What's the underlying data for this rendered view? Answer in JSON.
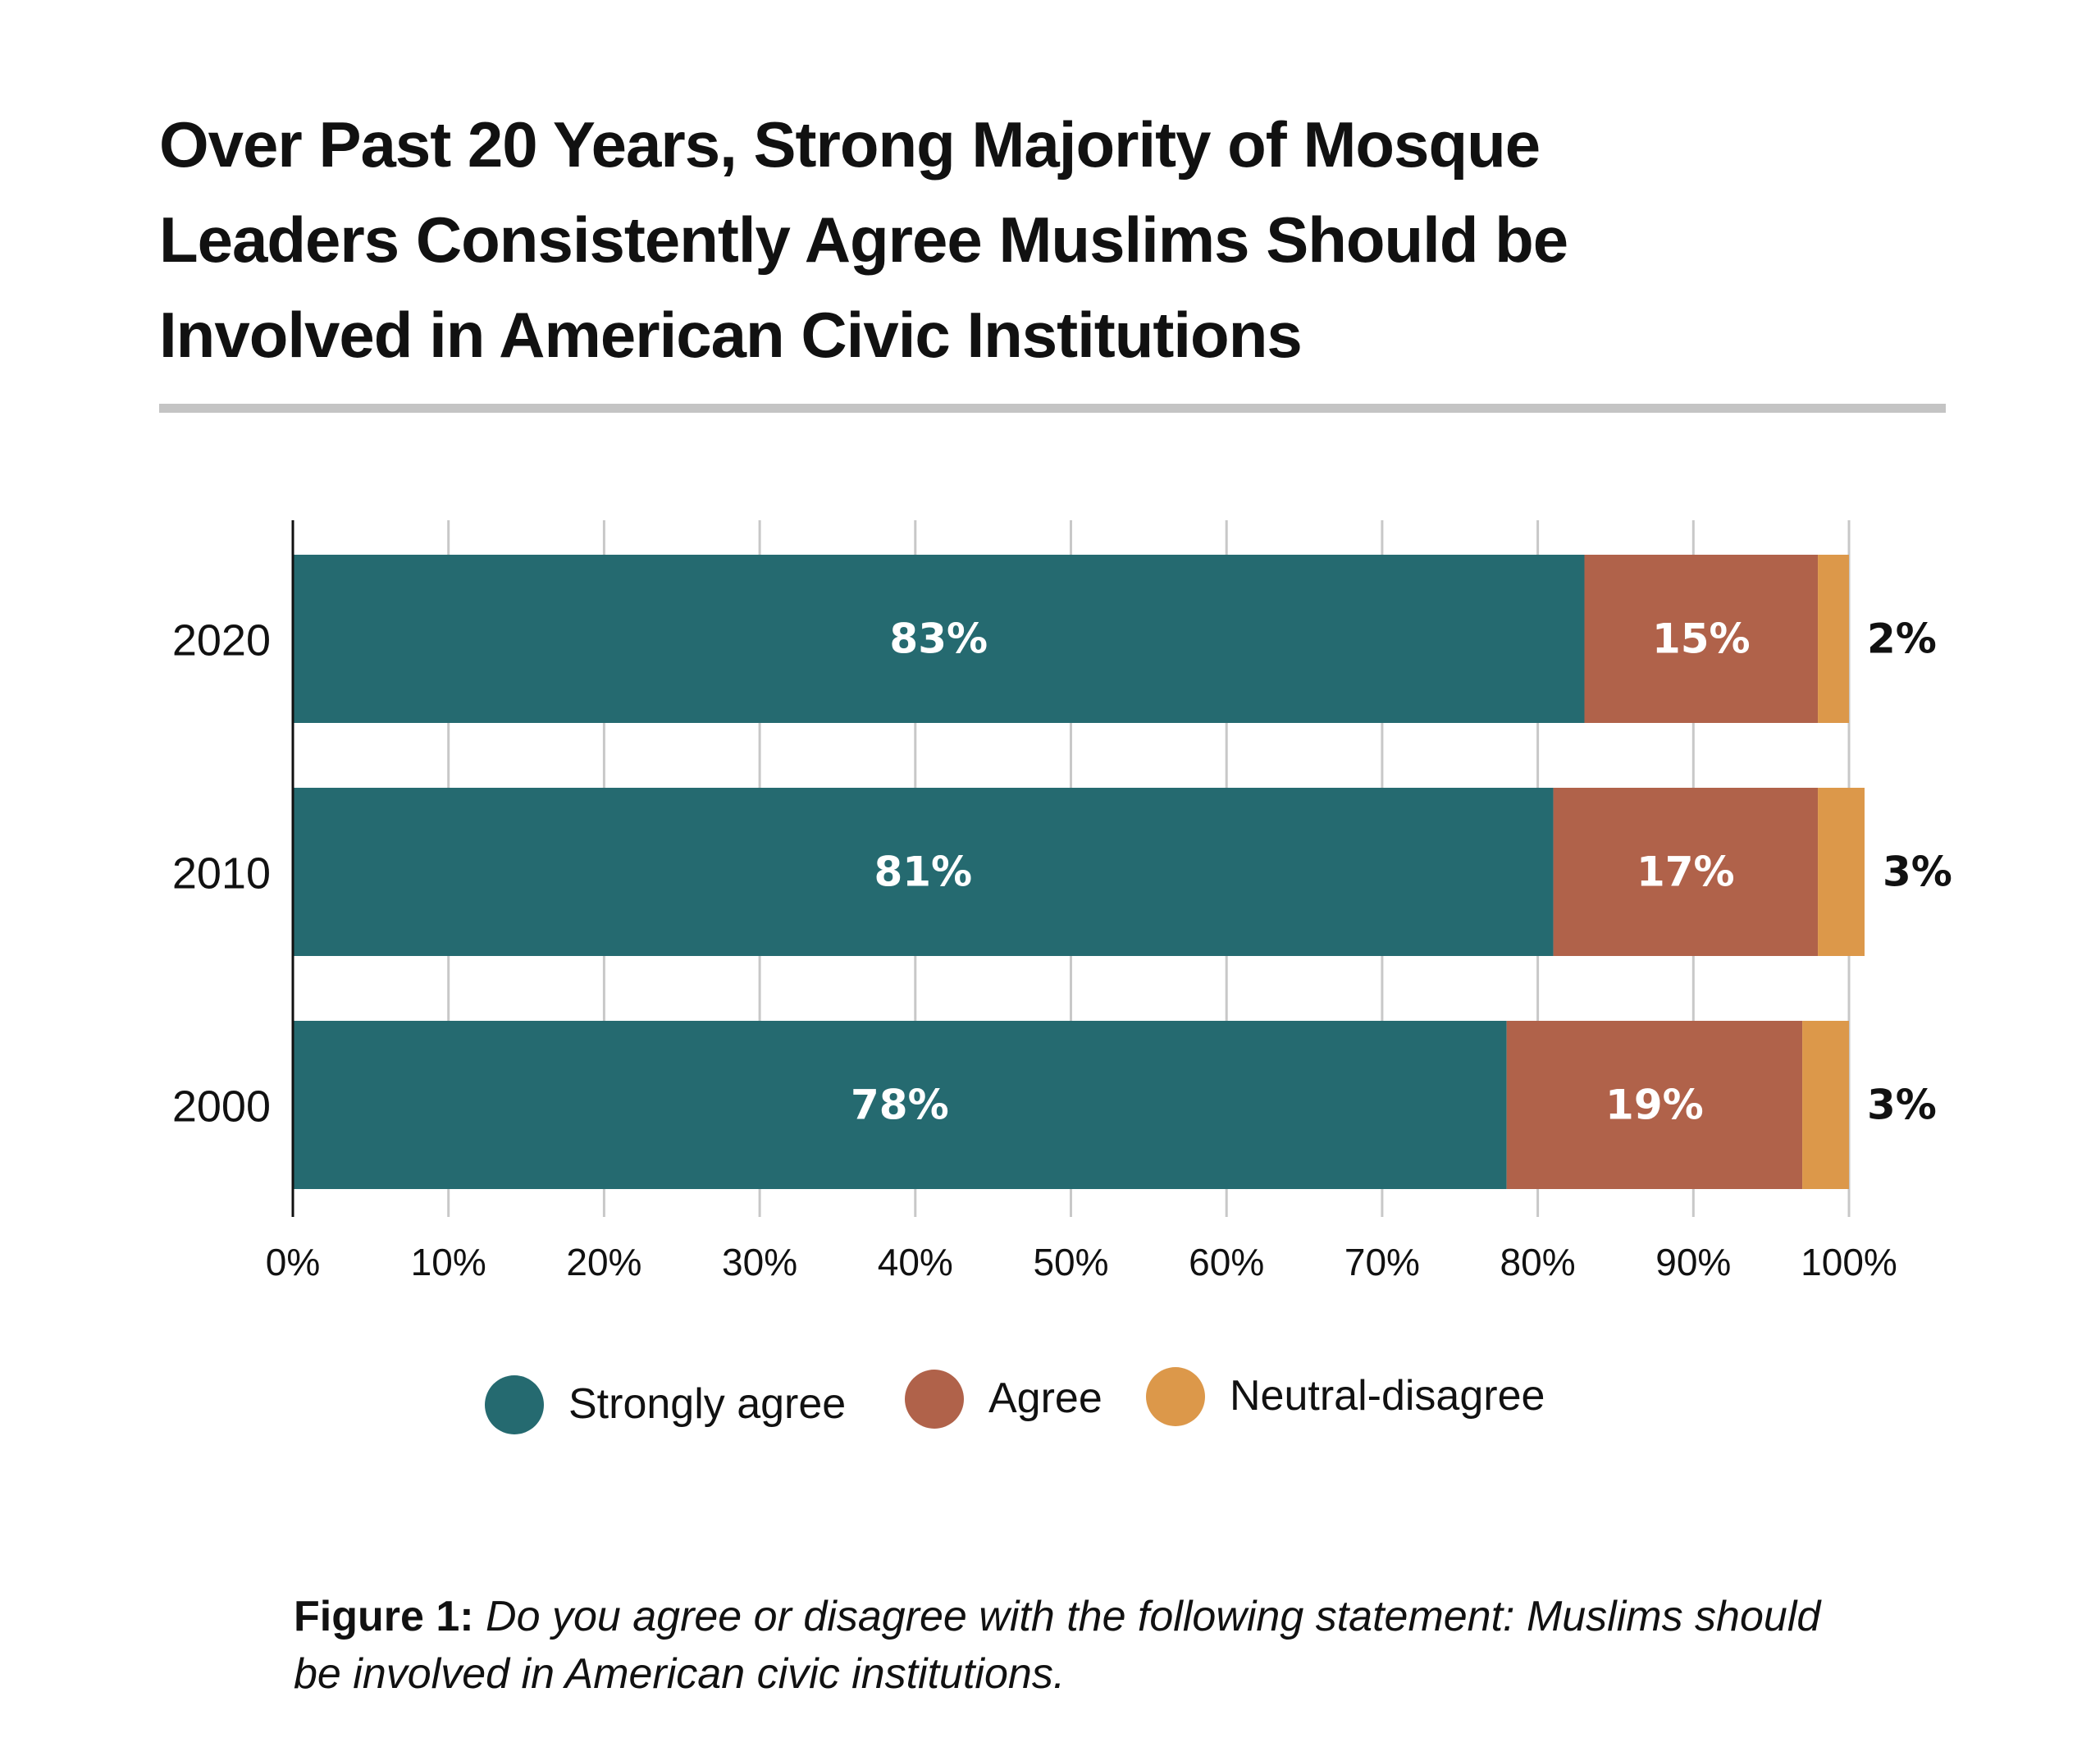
{
  "title": "Over Past 20 Years, Strong Majority of Mosque Leaders Consistently Agree Muslims Should be Involved in American Civic Institutions",
  "title_lines": [
    "Over Past 20 Years, Strong Majority of Mosque",
    "Leaders Consistently Agree Muslims Should be",
    "Involved in American Civic Institutions"
  ],
  "caption": {
    "label": "Figure 1:",
    "text": " Do you agree or disagree with the following statement: Muslims should be involved in American civic institutions."
  },
  "colors": {
    "strongly_agree": "#256a70",
    "agree": "#b0624a",
    "neutral_disagree": "#dc984a",
    "grid": "#c8c8c8",
    "axis": "#111111",
    "rule": "#c4c4c4"
  },
  "chart_data": {
    "type": "bar",
    "orientation": "horizontal",
    "stacked": true,
    "title": "Over Past 20 Years, Strong Majority of Mosque Leaders Consistently Agree Muslims Should be Involved in American Civic Institutions",
    "categories": [
      "2020",
      "2010",
      "2000"
    ],
    "series": [
      {
        "name": "Strongly agree",
        "values": [
          83,
          81,
          78
        ],
        "labels": [
          "83%",
          "81%",
          "78%"
        ]
      },
      {
        "name": "Agree",
        "values": [
          15,
          17,
          19
        ],
        "labels": [
          "15%",
          "17%",
          "19%"
        ]
      },
      {
        "name": "Neutral-disagree",
        "values": [
          2,
          3,
          3
        ],
        "labels": [
          "2%",
          "3%",
          "3%"
        ]
      }
    ],
    "xlabel": "",
    "ylabel": "",
    "xlim": [
      0,
      100
    ],
    "xticks": [
      0,
      10,
      20,
      30,
      40,
      50,
      60,
      70,
      80,
      90,
      100
    ],
    "xtick_labels": [
      "0%",
      "10%",
      "20%",
      "30%",
      "40%",
      "50%",
      "60%",
      "70%",
      "80%",
      "90%",
      "100%"
    ],
    "grid": true,
    "legend": {
      "position": "bottom",
      "entries": [
        "Strongly agree",
        "Agree",
        "Neutral-disagree"
      ]
    }
  }
}
